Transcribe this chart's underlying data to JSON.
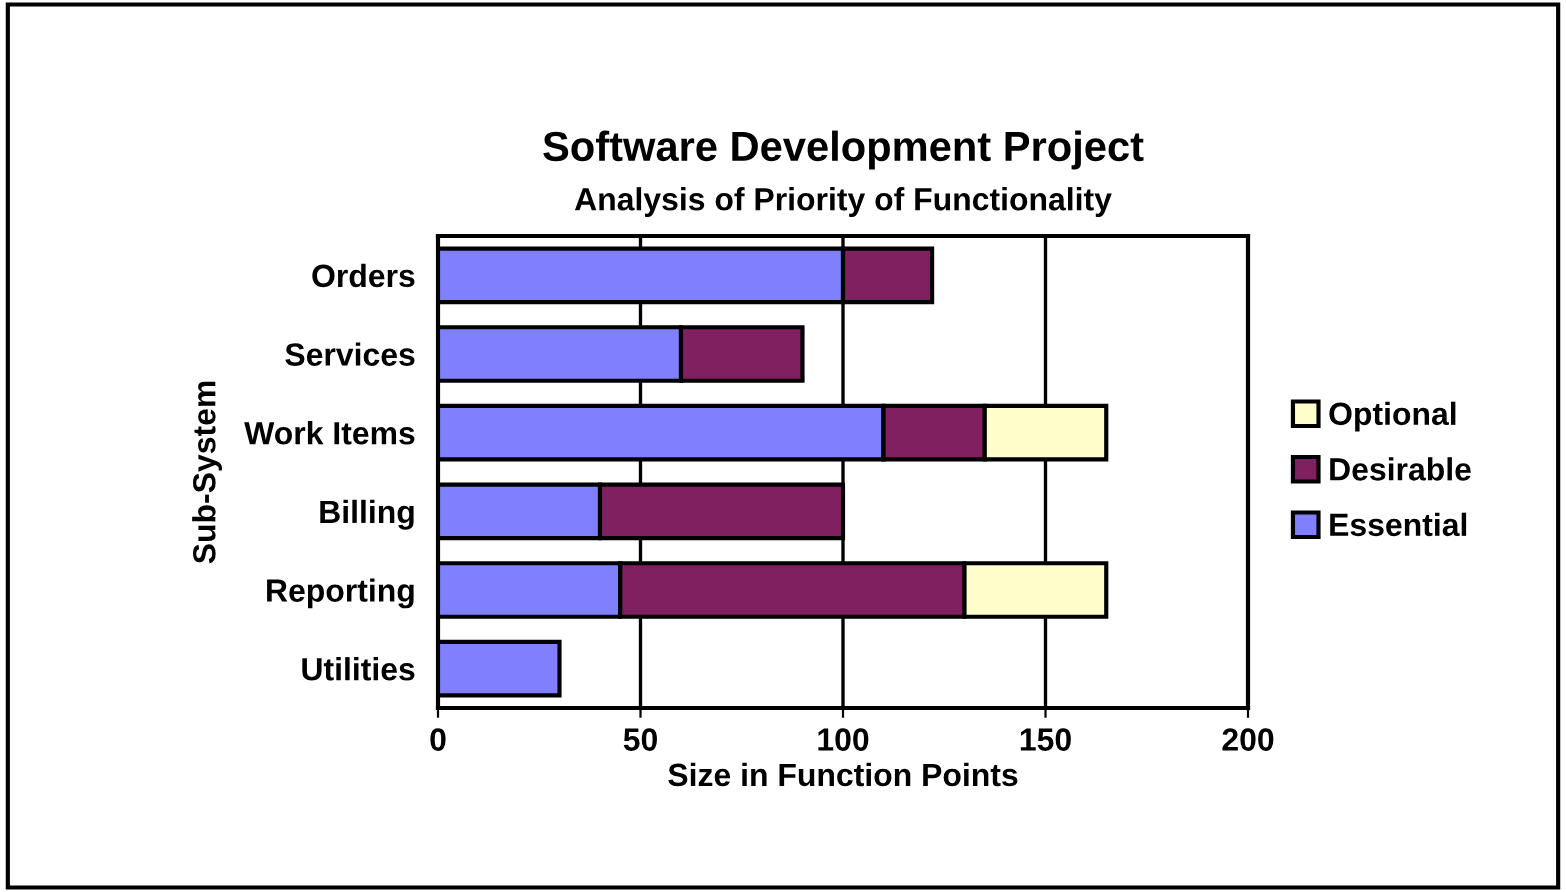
{
  "chart_data": {
    "type": "bar",
    "orientation": "horizontal",
    "stacked": true,
    "title": "Software Development Project",
    "subtitle": "Analysis of Priority of Functionality",
    "xlabel": "Size in Function Points",
    "ylabel": "Sub-System",
    "categories": [
      "Orders",
      "Services",
      "Work Items",
      "Billing",
      "Reporting",
      "Utilities"
    ],
    "series": [
      {
        "name": "Essential",
        "color": "#8080ff",
        "values": [
          100,
          60,
          110,
          40,
          45,
          30
        ]
      },
      {
        "name": "Desirable",
        "color": "#802060",
        "values": [
          22,
          30,
          25,
          60,
          85,
          null
        ]
      },
      {
        "name": "Optional",
        "color": "#ffffcc",
        "values": [
          null,
          null,
          30,
          null,
          35,
          null
        ]
      }
    ],
    "xlim": [
      0,
      200
    ],
    "xticks": [
      0,
      50,
      100,
      150,
      200
    ],
    "grid": "x",
    "legend": "right"
  }
}
